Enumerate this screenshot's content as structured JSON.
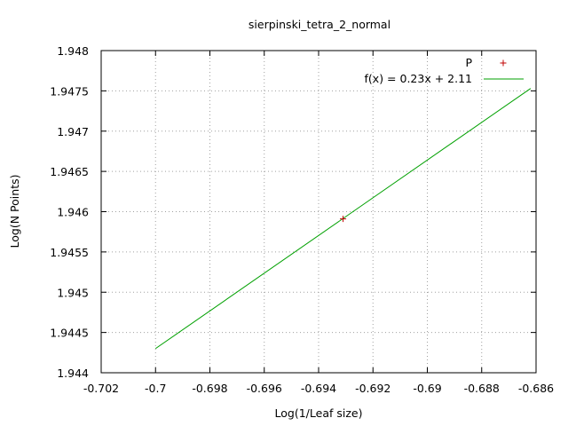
{
  "chart_data": {
    "type": "scatter",
    "title": "sierpinski_tetra_2_normal",
    "xlabel": "Log(1/Leaf size)",
    "ylabel": "Log(N Points)",
    "xlim": [
      -0.702,
      -0.686
    ],
    "ylim": [
      1.944,
      1.948
    ],
    "xticks": [
      -0.702,
      -0.7,
      -0.698,
      -0.696,
      -0.694,
      -0.692,
      -0.69,
      -0.688,
      -0.686
    ],
    "xtick_labels": [
      "-0.702",
      "-0.7",
      "-0.698",
      "-0.696",
      "-0.694",
      "-0.692",
      "-0.69",
      "-0.688",
      "-0.686"
    ],
    "yticks": [
      1.944,
      1.9445,
      1.945,
      1.9455,
      1.946,
      1.9465,
      1.947,
      1.9475,
      1.948
    ],
    "ytick_labels": [
      "1.944",
      "1.9445",
      "1.945",
      "1.9455",
      "1.946",
      "1.9465",
      "1.947",
      "1.9475",
      "1.948"
    ],
    "grid": true,
    "legend_position": "top-right",
    "series": [
      {
        "name": "P",
        "kind": "points",
        "marker": "+",
        "color": "#c00000",
        "points": [
          {
            "x": -0.6931,
            "y": 1.94591
          }
        ]
      },
      {
        "name": "f(x) = 0.23x + 2.11",
        "kind": "line",
        "color": "#00a000",
        "x_range": [
          -0.7,
          -0.6862
        ],
        "points": [
          {
            "x": -0.7,
            "y": 1.9443
          },
          {
            "x": -0.6862,
            "y": 1.94753
          }
        ]
      }
    ]
  }
}
